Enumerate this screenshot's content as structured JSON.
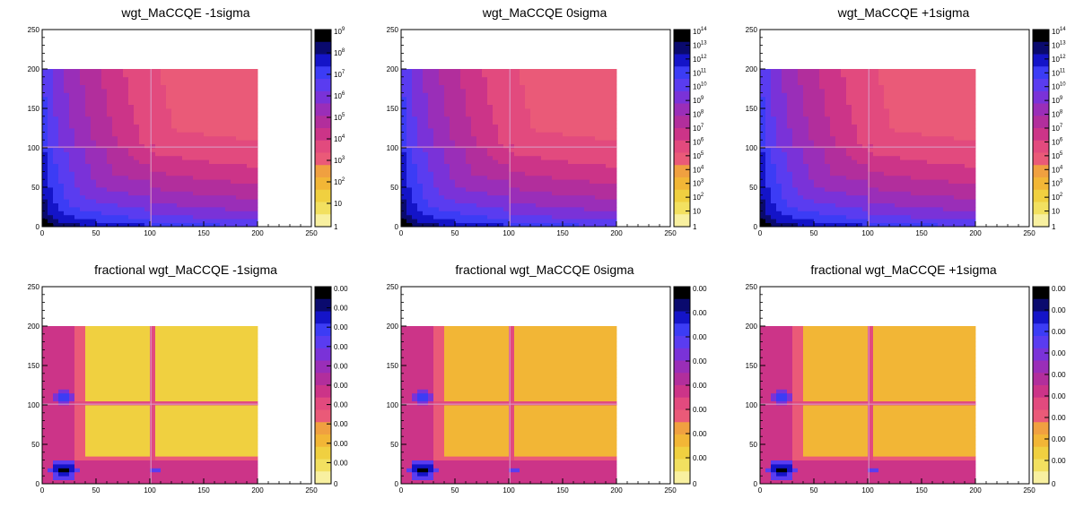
{
  "chart_data": [
    {
      "type": "heatmap",
      "title": "wgt_MaCCQE -1sigma",
      "xlim": [
        0,
        250
      ],
      "ylim": [
        0,
        250
      ],
      "x_ticks": [
        "0",
        "50",
        "100",
        "150",
        "200",
        "250"
      ],
      "y_ticks": [
        "0",
        "50",
        "100",
        "150",
        "200",
        "250"
      ],
      "data_extent": [
        0,
        200
      ],
      "kind": "matrix",
      "z_scale": "log",
      "z_ticks": [
        {
          "base": "1",
          "exp": ""
        },
        {
          "base": "10",
          "exp": ""
        },
        {
          "base": "10",
          "exp": "2"
        },
        {
          "base": "10",
          "exp": "3"
        },
        {
          "base": "10",
          "exp": "4"
        },
        {
          "base": "10",
          "exp": "5"
        },
        {
          "base": "10",
          "exp": "6"
        },
        {
          "base": "10",
          "exp": "7"
        },
        {
          "base": "10",
          "exp": "8"
        },
        {
          "base": "10",
          "exp": "9"
        }
      ]
    },
    {
      "type": "heatmap",
      "title": "wgt_MaCCQE 0sigma",
      "xlim": [
        0,
        250
      ],
      "ylim": [
        0,
        250
      ],
      "x_ticks": [
        "0",
        "50",
        "100",
        "150",
        "200",
        "250"
      ],
      "y_ticks": [
        "0",
        "50",
        "100",
        "150",
        "200",
        "250"
      ],
      "data_extent": [
        0,
        200
      ],
      "kind": "matrix",
      "z_scale": "log",
      "z_ticks": [
        {
          "base": "1",
          "exp": ""
        },
        {
          "base": "10",
          "exp": ""
        },
        {
          "base": "10",
          "exp": "2"
        },
        {
          "base": "10",
          "exp": "3"
        },
        {
          "base": "10",
          "exp": "4"
        },
        {
          "base": "10",
          "exp": "5"
        },
        {
          "base": "10",
          "exp": "6"
        },
        {
          "base": "10",
          "exp": "7"
        },
        {
          "base": "10",
          "exp": "8"
        },
        {
          "base": "10",
          "exp": "9"
        },
        {
          "base": "10",
          "exp": "10"
        },
        {
          "base": "10",
          "exp": "11"
        },
        {
          "base": "10",
          "exp": "12"
        },
        {
          "base": "10",
          "exp": "13"
        },
        {
          "base": "10",
          "exp": "14"
        }
      ]
    },
    {
      "type": "heatmap",
      "title": "wgt_MaCCQE +1sigma",
      "xlim": [
        0,
        250
      ],
      "ylim": [
        0,
        250
      ],
      "x_ticks": [
        "0",
        "50",
        "100",
        "150",
        "200",
        "250"
      ],
      "y_ticks": [
        "0",
        "50",
        "100",
        "150",
        "200",
        "250"
      ],
      "data_extent": [
        0,
        200
      ],
      "kind": "matrix",
      "z_scale": "log",
      "z_ticks": [
        {
          "base": "1",
          "exp": ""
        },
        {
          "base": "10",
          "exp": ""
        },
        {
          "base": "10",
          "exp": "2"
        },
        {
          "base": "10",
          "exp": "3"
        },
        {
          "base": "10",
          "exp": "4"
        },
        {
          "base": "10",
          "exp": "5"
        },
        {
          "base": "10",
          "exp": "6"
        },
        {
          "base": "10",
          "exp": "7"
        },
        {
          "base": "10",
          "exp": "8"
        },
        {
          "base": "10",
          "exp": "9"
        },
        {
          "base": "10",
          "exp": "10"
        },
        {
          "base": "10",
          "exp": "11"
        },
        {
          "base": "10",
          "exp": "12"
        },
        {
          "base": "10",
          "exp": "13"
        },
        {
          "base": "10",
          "exp": "14"
        }
      ]
    },
    {
      "type": "heatmap",
      "title": "fractional wgt_MaCCQE -1sigma",
      "xlim": [
        0,
        250
      ],
      "ylim": [
        0,
        250
      ],
      "x_ticks": [
        "0",
        "50",
        "100",
        "150",
        "200",
        "250"
      ],
      "y_ticks": [
        "0",
        "50",
        "100",
        "150",
        "200",
        "250"
      ],
      "data_extent": [
        0,
        200
      ],
      "kind": "fractional",
      "z_scale": "linear",
      "z_ticks": [
        {
          "base": "0",
          "exp": ""
        },
        {
          "base": "0.00",
          "exp": ""
        },
        {
          "base": "0.00",
          "exp": ""
        },
        {
          "base": "0.00",
          "exp": ""
        },
        {
          "base": "0.00",
          "exp": ""
        },
        {
          "base": "0.00",
          "exp": ""
        },
        {
          "base": "0.00",
          "exp": ""
        },
        {
          "base": "0.00",
          "exp": ""
        },
        {
          "base": "0.00",
          "exp": ""
        },
        {
          "base": "0.00",
          "exp": ""
        },
        {
          "base": "0.00",
          "exp": ""
        }
      ]
    },
    {
      "type": "heatmap",
      "title": "fractional wgt_MaCCQE 0sigma",
      "xlim": [
        0,
        250
      ],
      "ylim": [
        0,
        250
      ],
      "x_ticks": [
        "0",
        "50",
        "100",
        "150",
        "200",
        "250"
      ],
      "y_ticks": [
        "0",
        "50",
        "100",
        "150",
        "200",
        "250"
      ],
      "data_extent": [
        0,
        200
      ],
      "kind": "fractional",
      "z_scale": "linear",
      "z_ticks": [
        {
          "base": "0",
          "exp": ""
        },
        {
          "base": "0.00",
          "exp": ""
        },
        {
          "base": "0.00",
          "exp": ""
        },
        {
          "base": "0.00",
          "exp": ""
        },
        {
          "base": "0.00",
          "exp": ""
        },
        {
          "base": "0.00",
          "exp": ""
        },
        {
          "base": "0.00",
          "exp": ""
        },
        {
          "base": "0.00",
          "exp": ""
        },
        {
          "base": "0.00",
          "exp": ""
        }
      ]
    },
    {
      "type": "heatmap",
      "title": "fractional wgt_MaCCQE +1sigma",
      "xlim": [
        0,
        250
      ],
      "ylim": [
        0,
        250
      ],
      "x_ticks": [
        "0",
        "50",
        "100",
        "150",
        "200",
        "250"
      ],
      "y_ticks": [
        "0",
        "50",
        "100",
        "150",
        "200",
        "250"
      ],
      "data_extent": [
        0,
        200
      ],
      "kind": "fractional",
      "z_scale": "linear",
      "z_ticks": [
        {
          "base": "0",
          "exp": ""
        },
        {
          "base": "0.00",
          "exp": ""
        },
        {
          "base": "0.00",
          "exp": ""
        },
        {
          "base": "0.00",
          "exp": ""
        },
        {
          "base": "0.00",
          "exp": ""
        },
        {
          "base": "0.00",
          "exp": ""
        },
        {
          "base": "0.00",
          "exp": ""
        },
        {
          "base": "0.00",
          "exp": ""
        },
        {
          "base": "0.00",
          "exp": ""
        },
        {
          "base": "0.00",
          "exp": ""
        }
      ]
    }
  ],
  "palette": [
    "#000000",
    "#0a0a6e",
    "#1414c8",
    "#3c3cf5",
    "#5a3cf0",
    "#7a32d8",
    "#9a2eb8",
    "#b22e9c",
    "#cc3488",
    "#e24a7e",
    "#ea5a78",
    "#f0a040",
    "#f2b636",
    "#f0d040",
    "#f2e060",
    "#f8f0a0"
  ]
}
